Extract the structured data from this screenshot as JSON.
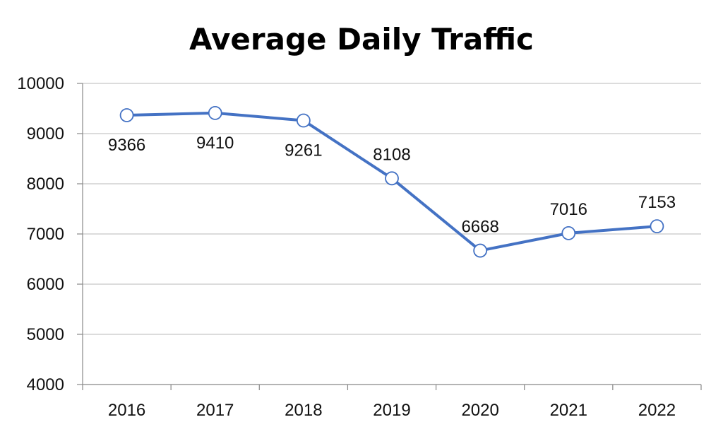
{
  "chart_data": {
    "type": "line",
    "title": "Average Daily Traffic",
    "xlabel": "",
    "ylabel": "",
    "categories": [
      "2016",
      "2017",
      "2018",
      "2019",
      "2020",
      "2021",
      "2022"
    ],
    "series": [
      {
        "values": [
          9366,
          9410,
          9261,
          8108,
          6668,
          7016,
          7153
        ]
      }
    ],
    "data_labels": [
      "9366",
      "9410",
      "9261",
      "8108",
      "6668",
      "7016",
      "7153"
    ],
    "ylim": [
      4000,
      10000
    ],
    "yticks": [
      4000,
      5000,
      6000,
      7000,
      8000,
      9000,
      10000
    ],
    "ytick_labels": [
      "4000",
      "5000",
      "6000",
      "7000",
      "8000",
      "9000",
      "10000"
    ],
    "grid": true,
    "legend": "none",
    "colors": {
      "line": "#4472C4",
      "marker_fill": "#ffffff",
      "grid": "#c8c8c8",
      "axis": "#888888"
    }
  }
}
